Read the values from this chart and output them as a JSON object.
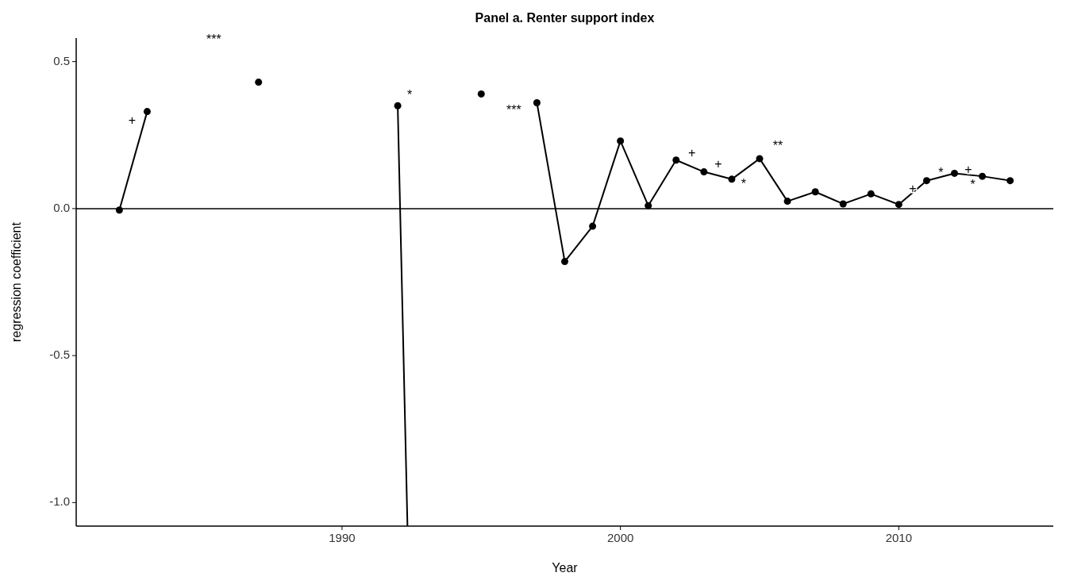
{
  "chart_data": {
    "type": "line",
    "title": "Panel a. Renter support index",
    "xlabel": "Year",
    "ylabel": "regression coefficient",
    "xlim": [
      1980.45,
      2015.55
    ],
    "xticks": [
      1990,
      2000,
      2010
    ],
    "ylim": [
      -1.08,
      0.58
    ],
    "yticks": [
      {
        "value": -1,
        "label": "-1.0"
      },
      -0.5,
      {
        "value": 0,
        "label": "0.0"
      },
      0.5
    ],
    "marker": "circle",
    "line_style": "solid",
    "grid": false,
    "series": [
      {
        "color": "#000000",
        "x": [
          1982,
          1983,
          1984,
          1985,
          1986,
          1987,
          1988,
          1989,
          1990,
          1991,
          1992,
          1993,
          1994,
          1995,
          1996,
          1997,
          1998,
          1999,
          2000,
          2001,
          2002,
          2003,
          2004,
          2005,
          2006,
          2007,
          2008,
          2009,
          2010,
          2011,
          2012,
          2013,
          2014
        ],
        "values": [
          -0.005,
          0.33,
          null,
          null,
          null,
          0.43,
          null,
          null,
          null,
          null,
          0.35,
          null,
          null,
          0.39,
          null,
          0.36,
          -0.18,
          -0.06,
          0.23,
          0.01,
          0.165,
          0.125,
          0.1,
          0.17,
          0.025,
          0.057,
          0.016,
          0.05,
          0.014,
          0.095,
          0.12,
          0.11,
          0.095
        ]
      },
      {
        "color": "#000000",
        "marker": "none",
        "x": [
          1992,
          1992.35
        ],
        "values": [
          0.35,
          -1.08
        ]
      }
    ],
    "ref_lines": [
      {
        "axis": "y",
        "value": 0,
        "color": "#000000"
      }
    ],
    "annotations": [
      {
        "text": "+",
        "x": 1983,
        "y": 0.33
      },
      "***",
      {
        "text": "*",
        "x": 1992,
        "y": 0.35
      },
      {
        "text": "***",
        "x": 1997,
        "y": 0.36
      },
      {
        "text": "+",
        "x": 2002,
        "y": 0.165
      },
      {
        "text": "+",
        "x": 2003,
        "y": 0.125
      },
      {
        "text": "*",
        "x": 2004,
        "y": 0.1
      },
      {
        "text": "**",
        "x": 2005,
        "y": 0.17
      },
      {
        "text": "+",
        "x": 2010.5,
        "y": 0.065
      },
      {
        "text": "*",
        "x": 2011,
        "y": 0.095
      },
      {
        "text": "+",
        "x": 2012.5,
        "y": 0.13
      },
      {
        "text": "*",
        "x": 2013,
        "y": 0.11
      }
    ]
  }
}
